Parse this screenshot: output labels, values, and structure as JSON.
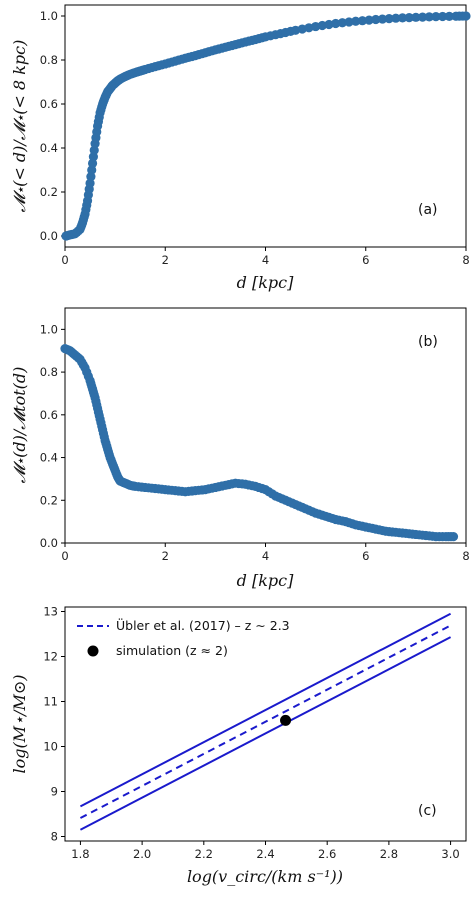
{
  "chart_data": [
    {
      "type": "scatter",
      "panel_label": "(a)",
      "xlabel": "d [kpc]",
      "ylabel": "𝓜⋆(< d)/𝓜⋆(< 8 kpc)",
      "xlim": [
        0,
        8
      ],
      "ylim": [
        -0.05,
        1.05
      ],
      "xticks": [
        0,
        2,
        4,
        6,
        8
      ],
      "yticks": [
        0.0,
        0.2,
        0.4,
        0.6,
        0.8,
        1.0
      ],
      "ytick_labels": [
        "0.0",
        "0.2",
        "0.4",
        "0.6",
        "0.8",
        "1.0"
      ],
      "marker_color": "#2f6fa8",
      "x": [
        0.02,
        0.1,
        0.2,
        0.3,
        0.35,
        0.4,
        0.45,
        0.5,
        0.55,
        0.6,
        0.65,
        0.7,
        0.75,
        0.8,
        0.85,
        0.9,
        0.95,
        1.0,
        1.05,
        1.1,
        1.2,
        1.3,
        1.4,
        1.5,
        1.6,
        1.8,
        2.0,
        2.2,
        2.4,
        2.6,
        2.8,
        3.0,
        3.2,
        3.4,
        3.6,
        3.8,
        4.0,
        4.3,
        4.6,
        5.0,
        5.4,
        5.8,
        6.2,
        6.6,
        7.0,
        7.4,
        7.8,
        8.0
      ],
      "y": [
        0.0,
        0.005,
        0.01,
        0.03,
        0.06,
        0.1,
        0.16,
        0.24,
        0.33,
        0.42,
        0.5,
        0.56,
        0.6,
        0.63,
        0.655,
        0.67,
        0.685,
        0.695,
        0.705,
        0.713,
        0.725,
        0.735,
        0.743,
        0.75,
        0.757,
        0.77,
        0.782,
        0.795,
        0.808,
        0.82,
        0.833,
        0.846,
        0.858,
        0.87,
        0.882,
        0.893,
        0.905,
        0.92,
        0.935,
        0.952,
        0.966,
        0.976,
        0.984,
        0.99,
        0.994,
        0.997,
        0.999,
        1.0
      ]
    },
    {
      "type": "scatter",
      "panel_label": "(b)",
      "xlabel": "d [kpc]",
      "ylabel": "𝓜⋆(d)/𝓜tot(d)",
      "xlim": [
        0,
        8
      ],
      "ylim": [
        0.0,
        1.1
      ],
      "xticks": [
        0,
        2,
        4,
        6,
        8
      ],
      "yticks": [
        0.0,
        0.2,
        0.4,
        0.6,
        0.8,
        1.0
      ],
      "ytick_labels": [
        "0.0",
        "0.2",
        "0.4",
        "0.6",
        "0.8",
        "1.0"
      ],
      "marker_color": "#2f6fa8",
      "x": [
        0.0,
        0.1,
        0.2,
        0.3,
        0.4,
        0.5,
        0.55,
        0.6,
        0.65,
        0.7,
        0.75,
        0.8,
        0.85,
        0.9,
        0.95,
        1.0,
        1.05,
        1.1,
        1.2,
        1.3,
        1.4,
        1.6,
        1.8,
        2.0,
        2.2,
        2.4,
        2.6,
        2.8,
        3.0,
        3.2,
        3.4,
        3.6,
        3.8,
        4.0,
        4.2,
        4.4,
        4.6,
        4.8,
        5.0,
        5.2,
        5.4,
        5.6,
        5.8,
        6.0,
        6.2,
        6.4,
        6.6,
        6.8,
        7.0,
        7.2,
        7.4,
        7.6,
        7.75
      ],
      "y": [
        0.91,
        0.9,
        0.88,
        0.86,
        0.82,
        0.76,
        0.72,
        0.68,
        0.63,
        0.58,
        0.53,
        0.48,
        0.44,
        0.4,
        0.37,
        0.34,
        0.31,
        0.29,
        0.28,
        0.27,
        0.265,
        0.26,
        0.255,
        0.25,
        0.245,
        0.24,
        0.245,
        0.25,
        0.26,
        0.27,
        0.28,
        0.275,
        0.265,
        0.25,
        0.22,
        0.2,
        0.18,
        0.16,
        0.14,
        0.125,
        0.11,
        0.1,
        0.085,
        0.075,
        0.065,
        0.055,
        0.05,
        0.045,
        0.04,
        0.035,
        0.03,
        0.03,
        0.03
      ]
    },
    {
      "type": "line",
      "panel_label": "(c)",
      "xlabel": "log(v_circ/(km s⁻¹))",
      "ylabel": "log(M⋆/M⊙)",
      "xlim": [
        1.75,
        3.05
      ],
      "ylim": [
        7.9,
        13.1
      ],
      "xticks": [
        1.8,
        2.0,
        2.2,
        2.4,
        2.6,
        2.8,
        3.0
      ],
      "xtick_labels": [
        "1.8",
        "2.0",
        "2.2",
        "2.4",
        "2.6",
        "2.8",
        "3.0"
      ],
      "yticks": [
        8,
        9,
        10,
        11,
        12,
        13
      ],
      "ytick_labels": [
        "8",
        "9",
        "10",
        "11",
        "12",
        "13"
      ],
      "line_color": "#1a1acc",
      "series": [
        {
          "name": "Übler et al. (2017) – z ∼ 2.3",
          "style": "dashed",
          "x": [
            1.8,
            3.0
          ],
          "y": [
            8.41,
            12.69
          ]
        },
        {
          "style": "solid",
          "x": [
            1.8,
            3.0
          ],
          "y": [
            8.67,
            12.95
          ]
        },
        {
          "style": "solid",
          "x": [
            1.8,
            3.0
          ],
          "y": [
            8.15,
            12.43
          ]
        }
      ],
      "points": [
        {
          "name": "simulation (z ≈ 2)",
          "x": 2.465,
          "y": 10.58,
          "color": "#000000"
        }
      ]
    }
  ]
}
